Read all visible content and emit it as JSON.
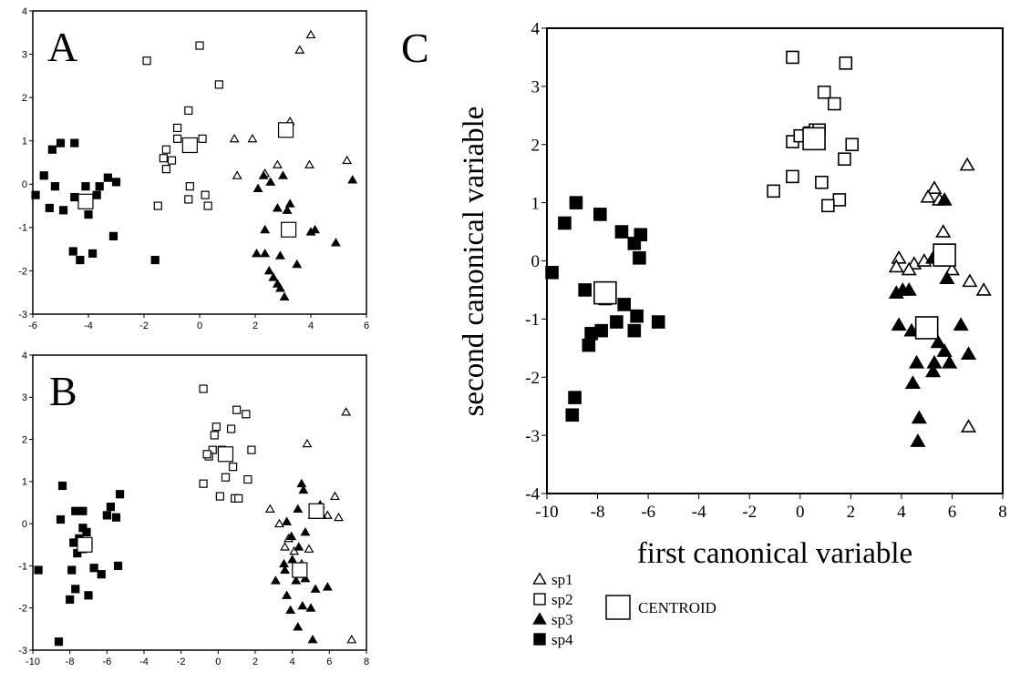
{
  "chart_data": [
    {
      "panel_label": "A",
      "type": "scatter",
      "xlim": [
        -6,
        6
      ],
      "ylim": [
        -3,
        4
      ],
      "xticks": [
        -6,
        -4,
        -2,
        0,
        2,
        4,
        6
      ],
      "yticks": [
        -3,
        -2,
        -1,
        0,
        1,
        2,
        3,
        4
      ],
      "xlabel": "",
      "ylabel": "",
      "series": [
        {
          "marker": "triangle-open",
          "points": [
            [
              4.0,
              3.45
            ],
            [
              3.6,
              3.1
            ],
            [
              3.25,
              1.45
            ],
            [
              1.25,
              1.05
            ],
            [
              1.9,
              1.05
            ],
            [
              1.35,
              0.2
            ],
            [
              2.35,
              0.25
            ],
            [
              2.8,
              0.45
            ],
            [
              3.95,
              0.45
            ],
            [
              5.3,
              0.55
            ]
          ]
        },
        {
          "marker": "square-open",
          "points": [
            [
              0.0,
              3.2
            ],
            [
              -1.9,
              2.85
            ],
            [
              0.7,
              2.3
            ],
            [
              -0.4,
              1.7
            ],
            [
              -0.8,
              1.3
            ],
            [
              -1.2,
              0.8
            ],
            [
              -1.0,
              0.55
            ],
            [
              -1.3,
              0.6
            ],
            [
              0.1,
              1.05
            ],
            [
              -1.2,
              0.35
            ],
            [
              -0.35,
              -0.05
            ],
            [
              0.2,
              -0.25
            ],
            [
              -0.4,
              -0.35
            ],
            [
              0.3,
              -0.5
            ],
            [
              -1.5,
              -0.5
            ],
            [
              -0.8,
              1.05
            ]
          ]
        },
        {
          "marker": "triangle-filled",
          "points": [
            [
              2.3,
              0.2
            ],
            [
              2.55,
              0.05
            ],
            [
              3.0,
              0.2
            ],
            [
              2.1,
              -0.1
            ],
            [
              3.25,
              -0.45
            ],
            [
              2.8,
              -0.55
            ],
            [
              3.15,
              -0.6
            ],
            [
              2.35,
              -1.05
            ],
            [
              4.0,
              -1.1
            ],
            [
              4.15,
              -1.05
            ],
            [
              4.9,
              -1.35
            ],
            [
              2.05,
              -1.6
            ],
            [
              2.35,
              -1.6
            ],
            [
              2.9,
              -1.65
            ],
            [
              3.5,
              -1.85
            ],
            [
              2.5,
              -2.0
            ],
            [
              2.65,
              -2.15
            ],
            [
              2.8,
              -2.3
            ],
            [
              2.9,
              -2.4
            ],
            [
              3.05,
              -2.6
            ],
            [
              5.5,
              0.1
            ]
          ]
        },
        {
          "marker": "square-filled",
          "points": [
            [
              -5.3,
              0.8
            ],
            [
              -5.0,
              0.95
            ],
            [
              -4.5,
              0.95
            ],
            [
              -5.6,
              0.2
            ],
            [
              -5.2,
              -0.05
            ],
            [
              -5.9,
              -0.25
            ],
            [
              -5.4,
              -0.55
            ],
            [
              -4.9,
              -0.6
            ],
            [
              -4.5,
              -0.3
            ],
            [
              -4.1,
              -0.05
            ],
            [
              -3.7,
              -0.25
            ],
            [
              -3.3,
              0.15
            ],
            [
              -3.6,
              -0.05
            ],
            [
              -3.0,
              0.05
            ],
            [
              -4.2,
              -0.45
            ],
            [
              -4.0,
              -0.7
            ],
            [
              -3.1,
              -1.2
            ],
            [
              -4.55,
              -1.55
            ],
            [
              -4.3,
              -1.75
            ],
            [
              -3.85,
              -1.6
            ],
            [
              -1.6,
              -1.75
            ]
          ]
        },
        {
          "marker": "centroid",
          "points": [
            [
              3.1,
              1.25
            ],
            [
              -0.35,
              0.9
            ],
            [
              3.2,
              -1.05
            ],
            [
              -4.1,
              -0.4
            ]
          ]
        }
      ]
    },
    {
      "panel_label": "B",
      "type": "scatter",
      "xlim": [
        -10,
        8
      ],
      "ylim": [
        -3,
        4
      ],
      "xticks": [
        -10,
        -8,
        -6,
        -4,
        -2,
        0,
        2,
        4,
        6,
        8
      ],
      "yticks": [
        -3,
        -2,
        -1,
        0,
        1,
        2,
        3,
        4
      ],
      "xlabel": "",
      "ylabel": "",
      "series": [
        {
          "marker": "triangle-open",
          "points": [
            [
              6.9,
              2.65
            ],
            [
              4.8,
              1.9
            ],
            [
              6.3,
              0.65
            ],
            [
              2.8,
              0.35
            ],
            [
              3.3,
              0.0
            ],
            [
              5.9,
              0.2
            ],
            [
              6.5,
              0.15
            ],
            [
              3.8,
              -0.35
            ],
            [
              4.1,
              -0.65
            ],
            [
              4.9,
              -0.6
            ],
            [
              4.5,
              -0.95
            ],
            [
              3.6,
              -0.55
            ],
            [
              7.2,
              -2.75
            ]
          ]
        },
        {
          "marker": "square-open",
          "points": [
            [
              -0.8,
              3.2
            ],
            [
              1.0,
              2.7
            ],
            [
              1.5,
              2.6
            ],
            [
              -0.1,
              2.3
            ],
            [
              0.7,
              2.25
            ],
            [
              -0.2,
              2.1
            ],
            [
              -0.3,
              1.75
            ],
            [
              0.2,
              1.75
            ],
            [
              1.8,
              1.75
            ],
            [
              -0.5,
              1.6
            ],
            [
              -0.6,
              1.65
            ],
            [
              0.8,
              1.35
            ],
            [
              0.4,
              1.1
            ],
            [
              1.6,
              1.05
            ],
            [
              -0.8,
              0.95
            ],
            [
              0.1,
              0.65
            ],
            [
              0.9,
              0.6
            ],
            [
              1.1,
              0.6
            ]
          ]
        },
        {
          "marker": "triangle-filled",
          "points": [
            [
              4.5,
              0.95
            ],
            [
              4.6,
              0.8
            ],
            [
              4.3,
              0.35
            ],
            [
              5.5,
              0.45
            ],
            [
              5.6,
              0.2
            ],
            [
              5.1,
              0.2
            ],
            [
              3.7,
              0.05
            ],
            [
              3.95,
              -0.3
            ],
            [
              4.7,
              -0.2
            ],
            [
              4.35,
              -0.55
            ],
            [
              3.55,
              -0.95
            ],
            [
              4.0,
              -0.85
            ],
            [
              4.4,
              -1.2
            ],
            [
              4.7,
              -1.3
            ],
            [
              3.6,
              -1.1
            ],
            [
              3.1,
              -1.35
            ],
            [
              4.2,
              -1.35
            ],
            [
              5.25,
              -1.55
            ],
            [
              5.9,
              -1.5
            ],
            [
              3.7,
              -1.7
            ],
            [
              4.55,
              -1.95
            ],
            [
              5.0,
              -2.0
            ],
            [
              3.9,
              -2.05
            ],
            [
              4.3,
              -2.45
            ],
            [
              5.1,
              -2.75
            ]
          ]
        },
        {
          "marker": "square-filled",
          "points": [
            [
              -8.4,
              0.9
            ],
            [
              -7.7,
              0.3
            ],
            [
              -7.3,
              0.3
            ],
            [
              -5.8,
              0.4
            ],
            [
              -5.3,
              0.7
            ],
            [
              -6.0,
              0.2
            ],
            [
              -5.5,
              0.15
            ],
            [
              -8.5,
              0.1
            ],
            [
              -7.3,
              -0.1
            ],
            [
              -7.1,
              -0.2
            ],
            [
              -7.5,
              -0.35
            ],
            [
              -7.8,
              -0.45
            ],
            [
              -7.0,
              -0.5
            ],
            [
              -7.6,
              -0.7
            ],
            [
              -7.3,
              -0.6
            ],
            [
              -9.7,
              -1.1
            ],
            [
              -7.9,
              -1.1
            ],
            [
              -6.7,
              -1.05
            ],
            [
              -5.4,
              -1.0
            ],
            [
              -6.3,
              -1.2
            ],
            [
              -7.7,
              -1.55
            ],
            [
              -8.0,
              -1.8
            ],
            [
              -7.0,
              -1.7
            ],
            [
              -8.6,
              -2.8
            ]
          ]
        },
        {
          "marker": "centroid",
          "points": [
            [
              0.4,
              1.65
            ],
            [
              5.3,
              0.3
            ],
            [
              4.4,
              -1.1
            ],
            [
              -7.2,
              -0.5
            ]
          ]
        }
      ]
    },
    {
      "panel_label": "C",
      "type": "scatter",
      "xlim": [
        -10,
        8
      ],
      "ylim": [
        -4,
        4
      ],
      "xticks": [
        -10,
        -8,
        -6,
        -4,
        -2,
        0,
        2,
        4,
        6,
        8
      ],
      "yticks": [
        -4,
        -3,
        -2,
        -1,
        0,
        1,
        2,
        3,
        4
      ],
      "xlabel": "first canonical variable",
      "ylabel": "second canonical variable",
      "series": [
        {
          "name": "sp1",
          "marker": "triangle-open",
          "points": [
            [
              6.6,
              1.65
            ],
            [
              5.3,
              1.25
            ],
            [
              5.05,
              1.1
            ],
            [
              5.5,
              1.05
            ],
            [
              5.65,
              0.5
            ],
            [
              3.9,
              0.05
            ],
            [
              4.5,
              -0.05
            ],
            [
              3.8,
              -0.1
            ],
            [
              4.3,
              -0.15
            ],
            [
              6.0,
              -0.15
            ],
            [
              6.7,
              -0.35
            ],
            [
              7.25,
              -0.5
            ],
            [
              4.9,
              0.0
            ],
            [
              6.65,
              -2.85
            ]
          ]
        },
        {
          "name": "sp2",
          "marker": "square-open",
          "points": [
            [
              -0.3,
              3.5
            ],
            [
              1.8,
              3.4
            ],
            [
              0.95,
              2.9
            ],
            [
              1.35,
              2.7
            ],
            [
              -0.3,
              2.05
            ],
            [
              0.0,
              2.15
            ],
            [
              0.4,
              2.2
            ],
            [
              0.6,
              2.25
            ],
            [
              0.75,
              2.25
            ],
            [
              2.05,
              2.0
            ],
            [
              1.75,
              1.75
            ],
            [
              -0.3,
              1.45
            ],
            [
              0.85,
              1.35
            ],
            [
              -1.05,
              1.2
            ],
            [
              1.55,
              1.05
            ],
            [
              1.1,
              0.95
            ]
          ]
        },
        {
          "name": "sp3",
          "marker": "triangle-filled",
          "points": [
            [
              5.7,
              1.05
            ],
            [
              5.25,
              0.05
            ],
            [
              5.8,
              0.0
            ],
            [
              5.55,
              0.05
            ],
            [
              4.05,
              -0.5
            ],
            [
              3.8,
              -0.55
            ],
            [
              4.3,
              -0.5
            ],
            [
              5.8,
              -0.3
            ],
            [
              3.9,
              -1.1
            ],
            [
              4.4,
              -1.2
            ],
            [
              6.35,
              -1.1
            ],
            [
              5.45,
              -1.4
            ],
            [
              5.7,
              -1.55
            ],
            [
              6.65,
              -1.6
            ],
            [
              5.3,
              -1.75
            ],
            [
              4.6,
              -1.75
            ],
            [
              5.9,
              -1.75
            ],
            [
              5.25,
              -1.9
            ],
            [
              4.45,
              -2.1
            ],
            [
              4.7,
              -2.7
            ],
            [
              4.65,
              -3.1
            ]
          ]
        },
        {
          "name": "sp4",
          "marker": "square-filled",
          "points": [
            [
              -8.85,
              1.0
            ],
            [
              -7.9,
              0.8
            ],
            [
              -9.3,
              0.65
            ],
            [
              -7.05,
              0.5
            ],
            [
              -6.3,
              0.45
            ],
            [
              -6.55,
              0.3
            ],
            [
              -6.35,
              0.05
            ],
            [
              -9.8,
              -0.2
            ],
            [
              -8.5,
              -0.5
            ],
            [
              -7.7,
              -0.65
            ],
            [
              -6.95,
              -0.75
            ],
            [
              -6.45,
              -0.95
            ],
            [
              -5.6,
              -1.05
            ],
            [
              -7.25,
              -1.05
            ],
            [
              -6.55,
              -1.2
            ],
            [
              -7.85,
              -1.2
            ],
            [
              -8.25,
              -1.25
            ],
            [
              -8.35,
              -1.45
            ],
            [
              -8.9,
              -2.35
            ],
            [
              -9.0,
              -2.65
            ]
          ]
        },
        {
          "name": "CENTROID",
          "marker": "centroid",
          "points": [
            [
              0.55,
              2.1
            ],
            [
              5.7,
              0.1
            ],
            [
              5.0,
              -1.15
            ],
            [
              -7.7,
              -0.55
            ]
          ]
        }
      ],
      "legend": {
        "placement": "bottom-left",
        "entries": [
          "sp1",
          "sp2",
          "sp3",
          "sp4"
        ],
        "centroid_label": "CENTROID"
      }
    }
  ]
}
